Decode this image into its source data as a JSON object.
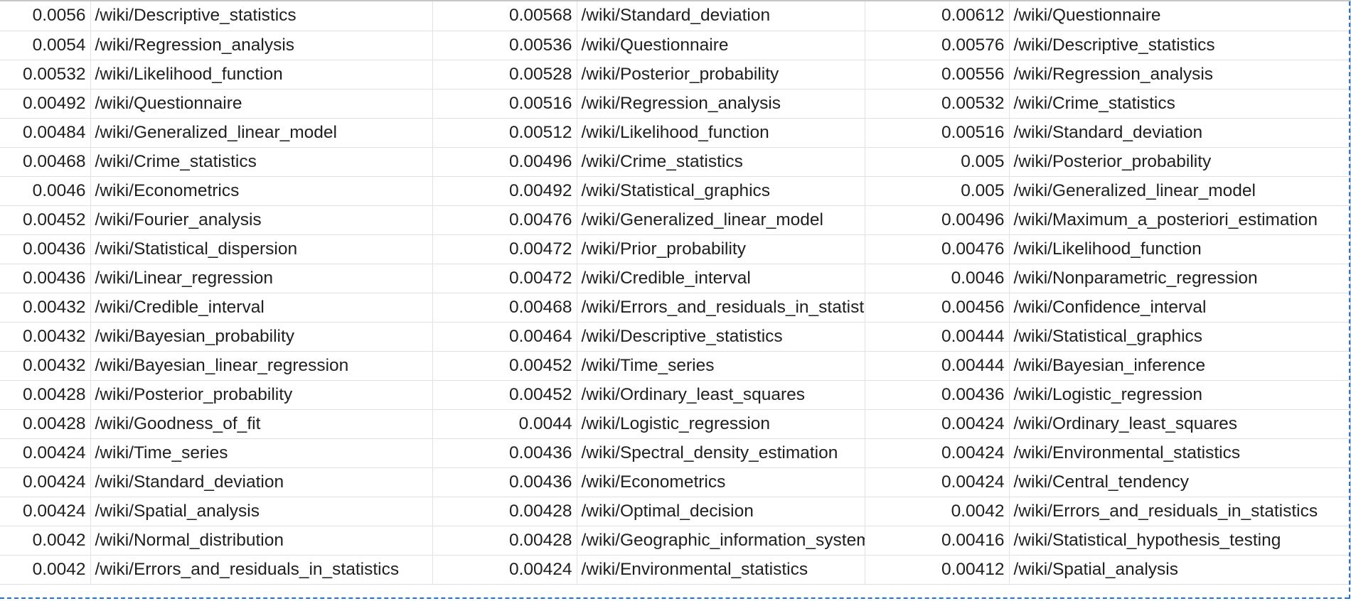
{
  "rows": [
    {
      "a1": "0.0056",
      "b1": "/wiki/Descriptive_statistics",
      "a2": "0.00568",
      "b2": "/wiki/Standard_deviation",
      "a3": "0.00612",
      "b3": "/wiki/Questionnaire"
    },
    {
      "a1": "0.0054",
      "b1": "/wiki/Regression_analysis",
      "a2": "0.00536",
      "b2": "/wiki/Questionnaire",
      "a3": "0.00576",
      "b3": "/wiki/Descriptive_statistics"
    },
    {
      "a1": "0.00532",
      "b1": "/wiki/Likelihood_function",
      "a2": "0.00528",
      "b2": "/wiki/Posterior_probability",
      "a3": "0.00556",
      "b3": "/wiki/Regression_analysis"
    },
    {
      "a1": "0.00492",
      "b1": "/wiki/Questionnaire",
      "a2": "0.00516",
      "b2": "/wiki/Regression_analysis",
      "a3": "0.00532",
      "b3": "/wiki/Crime_statistics"
    },
    {
      "a1": "0.00484",
      "b1": "/wiki/Generalized_linear_model",
      "a2": "0.00512",
      "b2": "/wiki/Likelihood_function",
      "a3": "0.00516",
      "b3": "/wiki/Standard_deviation"
    },
    {
      "a1": "0.00468",
      "b1": "/wiki/Crime_statistics",
      "a2": "0.00496",
      "b2": "/wiki/Crime_statistics",
      "a3": "0.005",
      "b3": "/wiki/Posterior_probability"
    },
    {
      "a1": "0.0046",
      "b1": "/wiki/Econometrics",
      "a2": "0.00492",
      "b2": "/wiki/Statistical_graphics",
      "a3": "0.005",
      "b3": "/wiki/Generalized_linear_model"
    },
    {
      "a1": "0.00452",
      "b1": "/wiki/Fourier_analysis",
      "a2": "0.00476",
      "b2": "/wiki/Generalized_linear_model",
      "a3": "0.00496",
      "b3": "/wiki/Maximum_a_posteriori_estimation"
    },
    {
      "a1": "0.00436",
      "b1": "/wiki/Statistical_dispersion",
      "a2": "0.00472",
      "b2": "/wiki/Prior_probability",
      "a3": "0.00476",
      "b3": "/wiki/Likelihood_function"
    },
    {
      "a1": "0.00436",
      "b1": "/wiki/Linear_regression",
      "a2": "0.00472",
      "b2": "/wiki/Credible_interval",
      "a3": "0.0046",
      "b3": "/wiki/Nonparametric_regression"
    },
    {
      "a1": "0.00432",
      "b1": "/wiki/Credible_interval",
      "a2": "0.00468",
      "b2": "/wiki/Errors_and_residuals_in_statistics",
      "a3": "0.00456",
      "b3": "/wiki/Confidence_interval"
    },
    {
      "a1": "0.00432",
      "b1": "/wiki/Bayesian_probability",
      "a2": "0.00464",
      "b2": "/wiki/Descriptive_statistics",
      "a3": "0.00444",
      "b3": "/wiki/Statistical_graphics"
    },
    {
      "a1": "0.00432",
      "b1": "/wiki/Bayesian_linear_regression",
      "a2": "0.00452",
      "b2": "/wiki/Time_series",
      "a3": "0.00444",
      "b3": "/wiki/Bayesian_inference"
    },
    {
      "a1": "0.00428",
      "b1": "/wiki/Posterior_probability",
      "a2": "0.00452",
      "b2": "/wiki/Ordinary_least_squares",
      "a3": "0.00436",
      "b3": "/wiki/Logistic_regression"
    },
    {
      "a1": "0.00428",
      "b1": "/wiki/Goodness_of_fit",
      "a2": "0.0044",
      "b2": "/wiki/Logistic_regression",
      "a3": "0.00424",
      "b3": "/wiki/Ordinary_least_squares"
    },
    {
      "a1": "0.00424",
      "b1": "/wiki/Time_series",
      "a2": "0.00436",
      "b2": "/wiki/Spectral_density_estimation",
      "a3": "0.00424",
      "b3": "/wiki/Environmental_statistics"
    },
    {
      "a1": "0.00424",
      "b1": "/wiki/Standard_deviation",
      "a2": "0.00436",
      "b2": "/wiki/Econometrics",
      "a3": "0.00424",
      "b3": "/wiki/Central_tendency"
    },
    {
      "a1": "0.00424",
      "b1": "/wiki/Spatial_analysis",
      "a2": "0.00428",
      "b2": "/wiki/Optimal_decision",
      "a3": "0.0042",
      "b3": "/wiki/Errors_and_residuals_in_statistics"
    },
    {
      "a1": "0.0042",
      "b1": "/wiki/Normal_distribution",
      "a2": "0.00428",
      "b2": "/wiki/Geographic_information_system",
      "a3": "0.00416",
      "b3": "/wiki/Statistical_hypothesis_testing"
    },
    {
      "a1": "0.0042",
      "b1": "/wiki/Errors_and_residuals_in_statistics",
      "a2": "0.00424",
      "b2": "/wiki/Environmental_statistics",
      "a3": "0.00412",
      "b3": "/wiki/Spatial_analysis"
    }
  ]
}
